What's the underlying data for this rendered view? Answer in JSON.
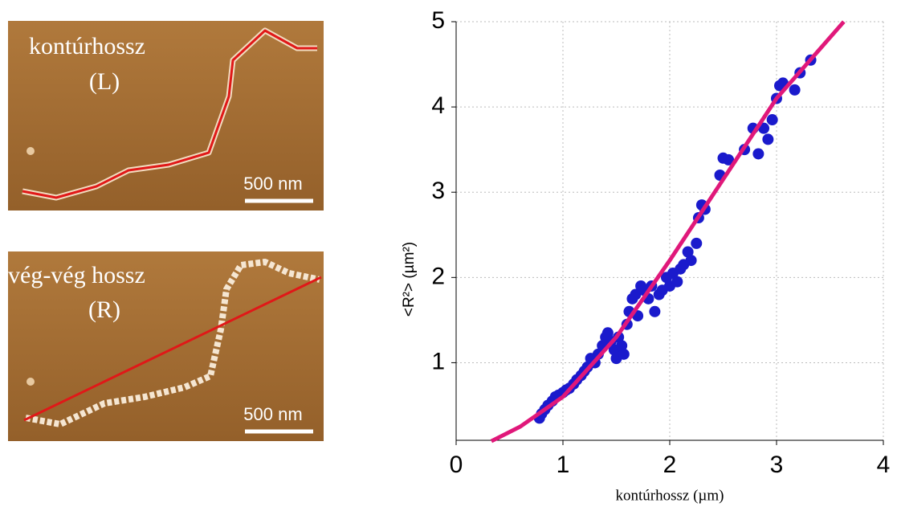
{
  "panels": [
    {
      "label": "kontúrhossz",
      "symbol": "(L)",
      "scale_bar": "500 nm"
    },
    {
      "label": "vég-vég hossz",
      "symbol": "(R)",
      "scale_bar": "500 nm"
    }
  ],
  "chart_data": {
    "type": "scatter",
    "x_label": "kontúrhossz (µm)",
    "y_label": "<R²> (µm²)",
    "xlim": [
      0,
      4
    ],
    "xticks": [
      0,
      1,
      2,
      3,
      4
    ],
    "ylim": [
      0.09,
      5
    ],
    "yticks": [
      1,
      2,
      3,
      4,
      5
    ],
    "grid": true,
    "series": [
      {
        "type": "scatter",
        "color": "#1a1acc",
        "x": [
          0.78,
          0.8,
          0.83,
          0.86,
          0.9,
          0.93,
          0.96,
          1.0,
          1.03,
          1.06,
          1.1,
          1.13,
          1.17,
          1.2,
          1.23,
          1.26,
          1.3,
          1.33,
          1.37,
          1.4,
          1.42,
          1.45,
          1.48,
          1.5,
          1.52,
          1.55,
          1.57,
          1.6,
          1.62,
          1.65,
          1.68,
          1.7,
          1.73,
          1.76,
          1.8,
          1.83,
          1.86,
          1.9,
          1.93,
          1.97,
          2.0,
          2.03,
          2.07,
          2.1,
          2.13,
          2.17,
          2.2,
          2.25,
          2.27,
          2.3,
          2.33,
          2.47,
          2.5,
          2.55,
          2.7,
          2.78,
          2.83,
          2.88,
          2.92,
          2.96,
          3.0,
          3.03,
          3.06,
          3.17,
          3.22,
          3.32
        ],
        "values": [
          0.35,
          0.4,
          0.45,
          0.5,
          0.55,
          0.6,
          0.62,
          0.65,
          0.68,
          0.7,
          0.75,
          0.8,
          0.85,
          0.9,
          0.95,
          1.05,
          1.0,
          1.1,
          1.2,
          1.3,
          1.35,
          1.25,
          1.15,
          1.05,
          1.3,
          1.2,
          1.1,
          1.45,
          1.6,
          1.75,
          1.8,
          1.55,
          1.9,
          1.85,
          1.75,
          1.9,
          1.6,
          1.8,
          1.85,
          2.0,
          1.9,
          2.05,
          1.95,
          2.1,
          2.15,
          2.3,
          2.2,
          2.4,
          2.7,
          2.85,
          2.8,
          3.2,
          3.4,
          3.38,
          3.5,
          3.75,
          3.45,
          3.75,
          3.62,
          3.85,
          4.1,
          4.25,
          4.28,
          4.2,
          4.4,
          4.55
        ]
      },
      {
        "type": "line",
        "color": "#e0187a",
        "x": [
          0.33,
          0.6,
          1.0,
          1.5,
          2.0,
          2.5,
          3.0,
          3.63
        ],
        "values": [
          0.08,
          0.25,
          0.6,
          1.3,
          2.2,
          3.15,
          4.1,
          5.0
        ]
      }
    ]
  }
}
